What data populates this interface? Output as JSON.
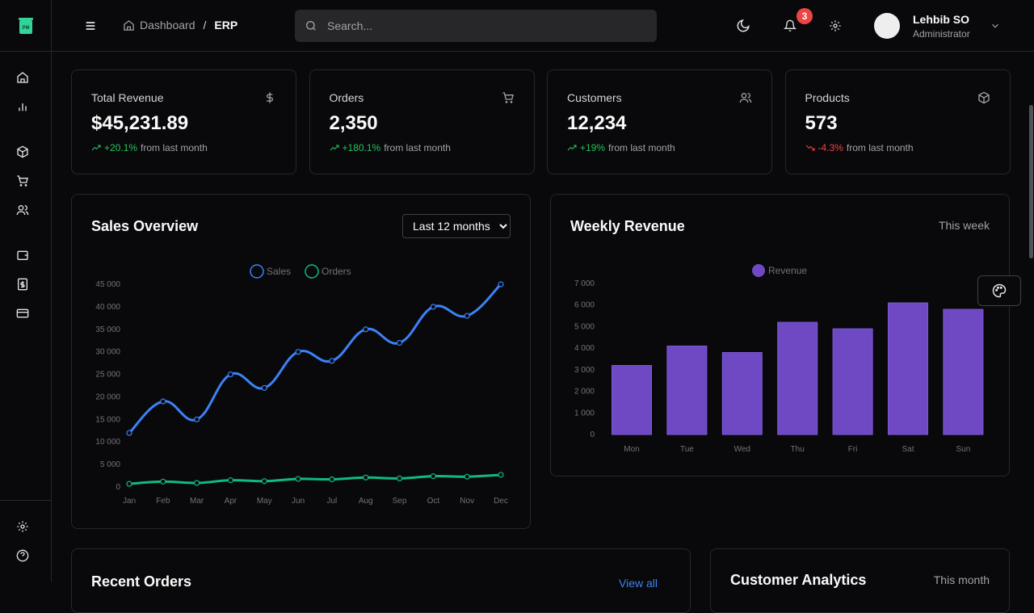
{
  "header": {
    "breadcrumb_root": "Dashboard",
    "breadcrumb_sep": "/",
    "breadcrumb_current": "ERP",
    "search_placeholder": "Search...",
    "notifications": "3",
    "user_name": "Lehbib SO",
    "user_role": "Administrator"
  },
  "stats": [
    {
      "label": "Total Revenue",
      "value": "$45,231.89",
      "change": "+20.1%",
      "trend": "up",
      "suffix": "from last month",
      "icon": "dollar-icon"
    },
    {
      "label": "Orders",
      "value": "2,350",
      "change": "+180.1%",
      "trend": "up",
      "suffix": "from last month",
      "icon": "cart-icon"
    },
    {
      "label": "Customers",
      "value": "12,234",
      "change": "+19%",
      "trend": "up",
      "suffix": "from last month",
      "icon": "users-icon"
    },
    {
      "label": "Products",
      "value": "573",
      "change": "-4.3%",
      "trend": "down",
      "suffix": "from last month",
      "icon": "package-icon"
    }
  ],
  "sales": {
    "title": "Sales Overview",
    "range": "Last 12 months"
  },
  "weekly": {
    "title": "Weekly Revenue",
    "period": "This week"
  },
  "recent": {
    "title": "Recent Orders",
    "link": "View all"
  },
  "analytics": {
    "title": "Customer Analytics",
    "period": "This month"
  },
  "colors": {
    "sales": "#3b82f6",
    "orders": "#10b981",
    "revenue": "#6f48c4",
    "up": "#22c55e",
    "down": "#ef4444"
  },
  "chart_data": [
    {
      "type": "line",
      "x": [
        "Jan",
        "Feb",
        "Mar",
        "Apr",
        "May",
        "Jun",
        "Jul",
        "Aug",
        "Sep",
        "Oct",
        "Nov",
        "Dec"
      ],
      "ylim": [
        0,
        45000
      ],
      "yticks": [
        "0",
        "5 000",
        "10 000",
        "15 000",
        "20 000",
        "25 000",
        "30 000",
        "35 000",
        "40 000",
        "45 000"
      ],
      "legend": "top",
      "series": [
        {
          "name": "Sales",
          "values": [
            12000,
            19000,
            15000,
            25000,
            22000,
            30000,
            28000,
            35000,
            32000,
            40000,
            38000,
            45000
          ]
        },
        {
          "name": "Orders",
          "values": [
            700,
            1200,
            900,
            1500,
            1300,
            1800,
            1700,
            2100,
            1900,
            2400,
            2300,
            2700
          ]
        }
      ]
    },
    {
      "type": "bar",
      "categories": [
        "Mon",
        "Tue",
        "Wed",
        "Thu",
        "Fri",
        "Sat",
        "Sun"
      ],
      "ylim": [
        0,
        7000
      ],
      "yticks": [
        "0",
        "1 000",
        "2 000",
        "3 000",
        "4 000",
        "5 000",
        "6 000",
        "7 000"
      ],
      "legend": "top",
      "series": [
        {
          "name": "Revenue",
          "values": [
            3200,
            4100,
            3800,
            5200,
            4900,
            6100,
            5800
          ]
        }
      ]
    }
  ]
}
